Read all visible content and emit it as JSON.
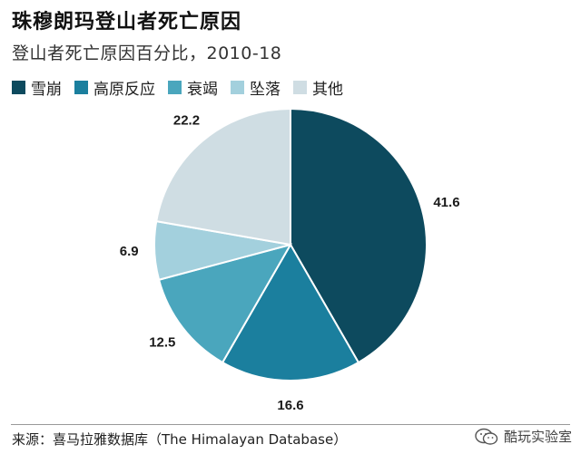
{
  "chart_data": {
    "type": "pie",
    "title": "珠穆朗玛登山者死亡原因",
    "subtitle": "登山者死亡原因百分比，2010-18",
    "categories": [
      "雪崩",
      "高原反应",
      "衰竭",
      "坠落",
      "其他"
    ],
    "values": [
      41.6,
      16.6,
      12.5,
      6.9,
      22.2
    ],
    "colors": [
      "#0d4a5e",
      "#1b7f9e",
      "#4aa6bd",
      "#a3d0dd",
      "#cfdde3"
    ],
    "value_labels": [
      "41.6",
      "16.6",
      "12.5",
      "6.9",
      "22.2"
    ],
    "legend_position": "top-left"
  },
  "footer": {
    "source": "来源：喜马拉雅数据库（The Himalayan Database）",
    "watermark": "酷玩实验室",
    "watermark_icon": "wechat-icon"
  }
}
